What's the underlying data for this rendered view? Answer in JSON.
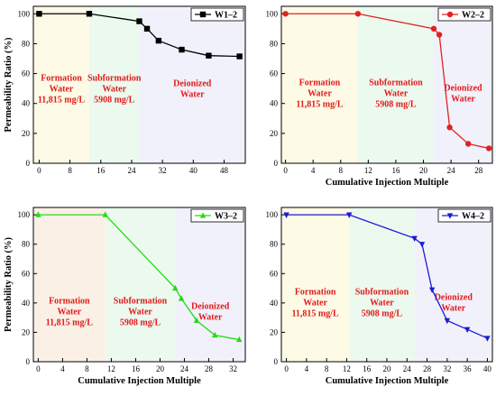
{
  "chart_data": [
    {
      "type": "line",
      "series": [
        {
          "name": "W1–2",
          "color": "#000000",
          "marker": "square",
          "x": [
            0,
            13,
            26,
            28,
            31,
            37,
            44,
            52
          ],
          "y": [
            100,
            100,
            95,
            90,
            82,
            76,
            72,
            71.5
          ]
        }
      ],
      "xlabel": "",
      "ylabel": "Permeability Ratio (%)",
      "xlim": [
        -1.5,
        53.5
      ],
      "ylim": [
        0,
        105
      ],
      "xticks": [
        0,
        8,
        16,
        24,
        32,
        40,
        48
      ],
      "yticks": [
        0,
        20,
        40,
        60,
        80,
        100
      ],
      "zones": [
        {
          "x0": -1.5,
          "x1": 13,
          "color": "#fdfae6",
          "label": [
            "Formation",
            "Water",
            "11,815 mg/L"
          ]
        },
        {
          "x0": 13,
          "x1": 26,
          "color": "#ecf9ee",
          "label": [
            "Subformation",
            "Water",
            "5908 mg/L"
          ]
        },
        {
          "x0": 26,
          "x1": 53.5,
          "color": "#f1f1fb",
          "label": [
            "Deionized",
            "Water"
          ]
        }
      ],
      "legend_position": "top-right"
    },
    {
      "type": "line",
      "series": [
        {
          "name": "W2–2",
          "color": "#e0221f",
          "marker": "circle",
          "x": [
            0,
            10.5,
            21.5,
            22.3,
            23.8,
            26.5,
            29.5
          ],
          "y": [
            100,
            100,
            90,
            86,
            24,
            13,
            10
          ]
        }
      ],
      "xlabel": "Cumulative Injection Multiple",
      "ylabel": "",
      "xlim": [
        -0.6,
        30
      ],
      "ylim": [
        0,
        105
      ],
      "xticks": [
        0,
        4,
        8,
        12,
        16,
        20,
        24,
        28
      ],
      "yticks": [
        0,
        20,
        40,
        60,
        80,
        100
      ],
      "zones": [
        {
          "x0": -0.6,
          "x1": 10.5,
          "color": "#fdfae6",
          "label": [
            "Formation",
            "Water",
            "11,815 mg/L"
          ]
        },
        {
          "x0": 10.5,
          "x1": 21.5,
          "color": "#ecf9ee",
          "label": [
            "Subformation",
            "Water",
            "5908 mg/L"
          ]
        },
        {
          "x0": 21.5,
          "x1": 30,
          "color": "#f1f1fb",
          "label": [
            "Deionized",
            "Water"
          ]
        }
      ],
      "legend_position": "top-right"
    },
    {
      "type": "line",
      "series": [
        {
          "name": "W3–2",
          "color": "#22dd11",
          "marker": "triangle-up",
          "x": [
            0,
            11,
            22.5,
            23.5,
            26,
            29,
            33
          ],
          "y": [
            100,
            100,
            50,
            43,
            28,
            18,
            15
          ]
        }
      ],
      "xlabel": "Cumulative Injection Multiple",
      "ylabel": "Permeability Ratio (%)",
      "xlim": [
        -0.8,
        34
      ],
      "ylim": [
        0,
        105
      ],
      "xticks": [
        0,
        4,
        8,
        12,
        16,
        20,
        24,
        28,
        32
      ],
      "yticks": [
        0,
        20,
        40,
        60,
        80,
        100
      ],
      "zones": [
        {
          "x0": -0.8,
          "x1": 11,
          "color": "#fbf0e6",
          "label": [
            "Formation",
            "Water",
            "11,815 mg/L"
          ]
        },
        {
          "x0": 11,
          "x1": 22.5,
          "color": "#ecf9ee",
          "label": [
            "Subformation",
            "Water",
            "5908 mg/L"
          ]
        },
        {
          "x0": 22.5,
          "x1": 34,
          "color": "#f1f1fb",
          "label": [
            "Deionized",
            "Water"
          ]
        }
      ],
      "legend_position": "top-right"
    },
    {
      "type": "line",
      "series": [
        {
          "name": "W4–2",
          "color": "#1a1ad6",
          "marker": "triangle-down",
          "x": [
            0,
            12.5,
            25.5,
            27,
            29,
            32,
            36,
            40
          ],
          "y": [
            100,
            100,
            84,
            80,
            49,
            28,
            22,
            16
          ]
        }
      ],
      "xlabel": "Cumulative Injection Multiple",
      "ylabel": "",
      "xlim": [
        -1,
        41
      ],
      "ylim": [
        0,
        105
      ],
      "xticks": [
        0,
        4,
        8,
        12,
        16,
        20,
        24,
        28,
        32,
        36,
        40
      ],
      "yticks": [
        0,
        20,
        40,
        60,
        80,
        100
      ],
      "zones": [
        {
          "x0": -1,
          "x1": 12.5,
          "color": "#fdfae6",
          "label": [
            "Formation",
            "Water",
            "11,815 mg/L"
          ]
        },
        {
          "x0": 12.5,
          "x1": 25.5,
          "color": "#ecf9ee",
          "label": [
            "Subformation",
            "Water",
            "5908 mg/L"
          ]
        },
        {
          "x0": 25.5,
          "x1": 41,
          "color": "#f1f1fb",
          "label": [
            "Deionized",
            "Water"
          ]
        }
      ],
      "legend_position": "top-right"
    }
  ]
}
